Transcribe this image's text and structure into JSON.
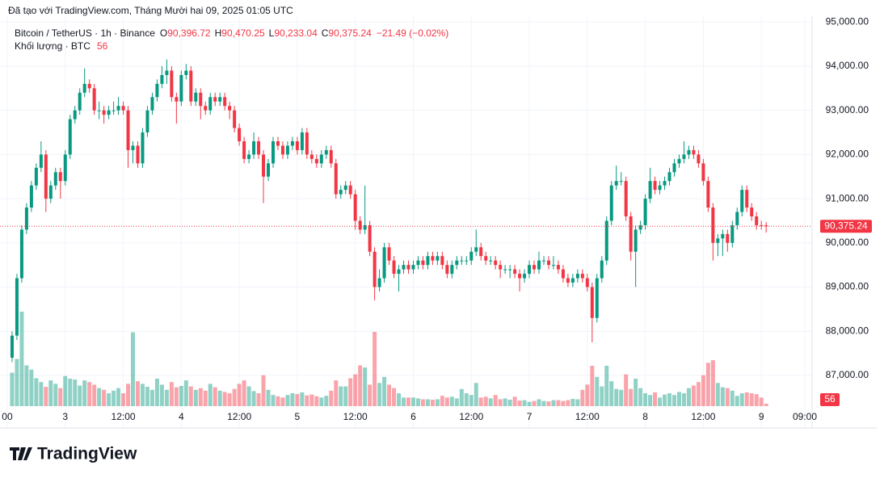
{
  "caption": "Đã tạo với TradingView.com, Tháng Mười hai 09, 2025 01:05 UTC",
  "logo": "TradingView",
  "chart_data": {
    "type": "candlestick",
    "symbol": "Bitcoin / TetherUS · 1h · Binance",
    "legend": {
      "open_label": "O",
      "open": "90,396.72",
      "high_label": "H",
      "high": "90,470.25",
      "low_label": "L",
      "low": "90,233.04",
      "close_label": "C",
      "close": "90,375.24",
      "change": "−21.49 (−0.02%)"
    },
    "volume_title": "Khối lượng · BTC",
    "up_color": "#089981",
    "down_color": "#f23645",
    "grid": true,
    "ylim": [
      85810,
      95133
    ],
    "yticks": [
      {
        "value": 95000,
        "label": "95,000.00"
      },
      {
        "value": 94000,
        "label": "94,000.00"
      },
      {
        "value": 93000,
        "label": "93,000.00"
      },
      {
        "value": 92000,
        "label": "92,000.00"
      },
      {
        "value": 91000,
        "label": "91,000.00"
      },
      {
        "value": 90000,
        "label": "90,000.00"
      },
      {
        "value": 89000,
        "label": "89,000.00"
      },
      {
        "value": 88000,
        "label": "88,000.00"
      },
      {
        "value": 87000,
        "label": "87,000.00"
      }
    ],
    "xlim": [
      -2.5,
      165.5
    ],
    "xticks": [
      {
        "value": -1,
        "label": "00"
      },
      {
        "value": 11,
        "label": "3"
      },
      {
        "value": 23,
        "label": "12:00"
      },
      {
        "value": 35,
        "label": "4"
      },
      {
        "value": 47,
        "label": "12:00"
      },
      {
        "value": 59,
        "label": "5"
      },
      {
        "value": 71,
        "label": "12:00"
      },
      {
        "value": 83,
        "label": "6"
      },
      {
        "value": 95,
        "label": "12:00"
      },
      {
        "value": 107,
        "label": "7"
      },
      {
        "value": 119,
        "label": "12:00"
      },
      {
        "value": 131,
        "label": "8"
      },
      {
        "value": 143,
        "label": "12:00"
      },
      {
        "value": 155,
        "label": "9"
      },
      {
        "value": 164,
        "label": "09:00"
      }
    ],
    "last_price": {
      "value": 90375.24,
      "label": "90,375.24"
    },
    "volume_lim": [
      0,
      2200
    ],
    "ohlc": [
      [
        87400,
        88000,
        87300,
        87900
      ],
      [
        87900,
        89300,
        87800,
        89200
      ],
      [
        89200,
        90400,
        89100,
        90300
      ],
      [
        90300,
        90900,
        90200,
        90800
      ],
      [
        90800,
        91400,
        90700,
        91300
      ],
      [
        91300,
        91800,
        91200,
        91700
      ],
      [
        91700,
        92300,
        91600,
        92000
      ],
      [
        92000,
        92100,
        90700,
        91000
      ],
      [
        91000,
        91400,
        90900,
        91300
      ],
      [
        91300,
        91700,
        91200,
        91600
      ],
      [
        91600,
        91700,
        91000,
        91400
      ],
      [
        91400,
        92100,
        91300,
        92000
      ],
      [
        92000,
        92900,
        91900,
        92800
      ],
      [
        92800,
        93100,
        92700,
        93000
      ],
      [
        93000,
        93500,
        92900,
        93400
      ],
      [
        93400,
        93950,
        93300,
        93600
      ],
      [
        93600,
        93700,
        93400,
        93500
      ],
      [
        93500,
        93600,
        92900,
        93000
      ],
      [
        93000,
        93200,
        92800,
        93000
      ],
      [
        93000,
        93100,
        92700,
        92900
      ],
      [
        92900,
        93100,
        92800,
        93000
      ],
      [
        93000,
        93200,
        92900,
        93000
      ],
      [
        93000,
        93300,
        92900,
        93100
      ],
      [
        93100,
        93200,
        92900,
        93000
      ],
      [
        93000,
        93100,
        91700,
        92100
      ],
      [
        92100,
        92300,
        91800,
        92200
      ],
      [
        92200,
        92300,
        91700,
        91800
      ],
      [
        91800,
        92600,
        91700,
        92500
      ],
      [
        92500,
        93100,
        92400,
        93000
      ],
      [
        93000,
        93400,
        92900,
        93300
      ],
      [
        93300,
        93700,
        93200,
        93600
      ],
      [
        93600,
        94000,
        93500,
        93800
      ],
      [
        93800,
        94150,
        93600,
        93900
      ],
      [
        93900,
        94000,
        93200,
        93300
      ],
      [
        93300,
        93400,
        92700,
        93200
      ],
      [
        93200,
        93900,
        93100,
        93800
      ],
      [
        93800,
        94050,
        93700,
        93900
      ],
      [
        93900,
        94000,
        93100,
        93200
      ],
      [
        93200,
        93500,
        93100,
        93400
      ],
      [
        93400,
        93500,
        92800,
        93100
      ],
      [
        93100,
        93200,
        92900,
        93000
      ],
      [
        93000,
        93400,
        92900,
        93300
      ],
      [
        93300,
        93400,
        93100,
        93200
      ],
      [
        93200,
        93400,
        93100,
        93300
      ],
      [
        93300,
        93400,
        93000,
        93100
      ],
      [
        93100,
        93200,
        92800,
        93000
      ],
      [
        93000,
        93100,
        92500,
        92600
      ],
      [
        92600,
        92700,
        92200,
        92300
      ],
      [
        92300,
        92400,
        91800,
        91900
      ],
      [
        91900,
        92100,
        91800,
        92000
      ],
      [
        92000,
        92500,
        91900,
        92300
      ],
      [
        92300,
        92400,
        91900,
        92000
      ],
      [
        92000,
        92100,
        90900,
        91500
      ],
      [
        91500,
        91900,
        91400,
        91800
      ],
      [
        91800,
        92400,
        91700,
        92300
      ],
      [
        92300,
        92400,
        92100,
        92200
      ],
      [
        92200,
        92300,
        91900,
        92000
      ],
      [
        92000,
        92300,
        91900,
        92200
      ],
      [
        92200,
        92400,
        92100,
        92300
      ],
      [
        92300,
        92400,
        92000,
        92100
      ],
      [
        92100,
        92600,
        92000,
        92500
      ],
      [
        92500,
        92600,
        91900,
        92000
      ],
      [
        92000,
        92100,
        91800,
        91900
      ],
      [
        91900,
        92000,
        91700,
        91800
      ],
      [
        91800,
        92100,
        91700,
        92000
      ],
      [
        92000,
        92200,
        91900,
        92100
      ],
      [
        92100,
        92200,
        91700,
        91800
      ],
      [
        91800,
        91900,
        91000,
        91100
      ],
      [
        91100,
        91300,
        91000,
        91200
      ],
      [
        91200,
        91400,
        91100,
        91300
      ],
      [
        91300,
        91400,
        91000,
        91100
      ],
      [
        91100,
        91200,
        90300,
        90500
      ],
      [
        90500,
        90600,
        90200,
        90300
      ],
      [
        90300,
        91300,
        90200,
        90400
      ],
      [
        90400,
        90500,
        89700,
        89800
      ],
      [
        89800,
        89900,
        88700,
        89000
      ],
      [
        89000,
        89400,
        88900,
        89200
      ],
      [
        89200,
        90000,
        89100,
        89900
      ],
      [
        89900,
        90000,
        89500,
        89600
      ],
      [
        89600,
        89700,
        89200,
        89300
      ],
      [
        89300,
        89500,
        88900,
        89400
      ],
      [
        89400,
        89600,
        89300,
        89500
      ],
      [
        89500,
        89600,
        89300,
        89400
      ],
      [
        89400,
        89600,
        89300,
        89500
      ],
      [
        89500,
        89700,
        89400,
        89600
      ],
      [
        89600,
        89700,
        89400,
        89500
      ],
      [
        89500,
        89800,
        89400,
        89700
      ],
      [
        89700,
        89800,
        89500,
        89600
      ],
      [
        89600,
        89800,
        89500,
        89700
      ],
      [
        89700,
        89800,
        89400,
        89500
      ],
      [
        89500,
        89600,
        89200,
        89300
      ],
      [
        89300,
        89600,
        89200,
        89500
      ],
      [
        89500,
        89700,
        89400,
        89600
      ],
      [
        89600,
        89700,
        89500,
        89600
      ],
      [
        89600,
        89700,
        89500,
        89600
      ],
      [
        89600,
        89900,
        89500,
        89800
      ],
      [
        89800,
        90300,
        89700,
        89900
      ],
      [
        89900,
        90000,
        89600,
        89700
      ],
      [
        89700,
        89800,
        89500,
        89600
      ],
      [
        89600,
        89700,
        89500,
        89600
      ],
      [
        89600,
        89700,
        89400,
        89500
      ],
      [
        89500,
        89600,
        89200,
        89400
      ],
      [
        89400,
        89500,
        89300,
        89400
      ],
      [
        89400,
        89500,
        89200,
        89400
      ],
      [
        89400,
        89500,
        89200,
        89300
      ],
      [
        89300,
        89400,
        88900,
        89200
      ],
      [
        89200,
        89400,
        89100,
        89300
      ],
      [
        89300,
        89600,
        89200,
        89500
      ],
      [
        89500,
        89600,
        89300,
        89400
      ],
      [
        89400,
        89800,
        89300,
        89600
      ],
      [
        89600,
        89700,
        89500,
        89600
      ],
      [
        89600,
        89700,
        89400,
        89500
      ],
      [
        89500,
        89700,
        89400,
        89500
      ],
      [
        89500,
        89600,
        89300,
        89400
      ],
      [
        89400,
        89500,
        89100,
        89200
      ],
      [
        89200,
        89300,
        89000,
        89100
      ],
      [
        89100,
        89300,
        89000,
        89200
      ],
      [
        89200,
        89400,
        89100,
        89300
      ],
      [
        89300,
        89400,
        89100,
        89200
      ],
      [
        89200,
        89300,
        88900,
        89000
      ],
      [
        89000,
        89100,
        87750,
        88300
      ],
      [
        88300,
        89300,
        88200,
        89200
      ],
      [
        89200,
        89700,
        89100,
        89600
      ],
      [
        89600,
        90600,
        89500,
        90500
      ],
      [
        90500,
        91400,
        90400,
        91300
      ],
      [
        91300,
        91750,
        91200,
        91400
      ],
      [
        91400,
        91600,
        91300,
        91400
      ],
      [
        91400,
        91500,
        90500,
        90600
      ],
      [
        90600,
        90700,
        89600,
        89800
      ],
      [
        89800,
        90400,
        89000,
        90300
      ],
      [
        90300,
        90500,
        90200,
        90400
      ],
      [
        90400,
        91100,
        90300,
        91000
      ],
      [
        91000,
        91700,
        90900,
        91400
      ],
      [
        91400,
        91500,
        91100,
        91200
      ],
      [
        91200,
        91400,
        91100,
        91300
      ],
      [
        91300,
        91500,
        91200,
        91400
      ],
      [
        91400,
        91700,
        91300,
        91600
      ],
      [
        91600,
        91900,
        91500,
        91800
      ],
      [
        91800,
        92000,
        91700,
        91900
      ],
      [
        91900,
        92300,
        91800,
        92000
      ],
      [
        92000,
        92200,
        91900,
        92100
      ],
      [
        92100,
        92200,
        91900,
        92000
      ],
      [
        92000,
        92100,
        91700,
        91800
      ],
      [
        91800,
        91900,
        91300,
        91400
      ],
      [
        91400,
        91500,
        90700,
        90800
      ],
      [
        90800,
        90900,
        89600,
        90000
      ],
      [
        90000,
        90200,
        89700,
        90100
      ],
      [
        90100,
        90300,
        89700,
        90200
      ],
      [
        90200,
        90300,
        89800,
        90000
      ],
      [
        90000,
        90500,
        89900,
        90400
      ],
      [
        90400,
        90800,
        90300,
        90700
      ],
      [
        90700,
        91300,
        90600,
        91200
      ],
      [
        91200,
        91300,
        90700,
        90800
      ],
      [
        90800,
        90900,
        90500,
        90600
      ],
      [
        90600,
        90700,
        90300,
        90400
      ],
      [
        90400,
        90500,
        90300,
        90396.72
      ],
      [
        90396.72,
        90470.25,
        90233.04,
        90375.24
      ]
    ],
    "volume": [
      780,
      1100,
      2200,
      950,
      850,
      650,
      560,
      450,
      600,
      520,
      420,
      700,
      640,
      620,
      480,
      600,
      560,
      500,
      420,
      380,
      300,
      360,
      420,
      300,
      520,
      1720,
      580,
      520,
      450,
      380,
      640,
      500,
      380,
      560,
      440,
      470,
      600,
      460,
      380,
      420,
      360,
      520,
      440,
      360,
      330,
      300,
      400,
      520,
      600,
      460,
      350,
      300,
      720,
      380,
      260,
      230,
      200,
      260,
      300,
      280,
      320,
      250,
      270,
      230,
      200,
      240,
      360,
      600,
      460,
      460,
      650,
      740,
      950,
      900,
      500,
      1730,
      540,
      680,
      500,
      420,
      300,
      200,
      200,
      200,
      180,
      160,
      160,
      150,
      160,
      240,
      200,
      220,
      180,
      400,
      300,
      260,
      540,
      200,
      220,
      180,
      260,
      160,
      180,
      150,
      220,
      130,
      140,
      100,
      120,
      160,
      120,
      110,
      140,
      140,
      120,
      140,
      170,
      160,
      380,
      500,
      940,
      680,
      460,
      940,
      580,
      400,
      380,
      740,
      400,
      640,
      420,
      300,
      260,
      320,
      200,
      270,
      300,
      260,
      330,
      300,
      420,
      480,
      560,
      720,
      1010,
      1070,
      540,
      440,
      420,
      360,
      240,
      300,
      320,
      300,
      280,
      200,
      56
    ]
  }
}
